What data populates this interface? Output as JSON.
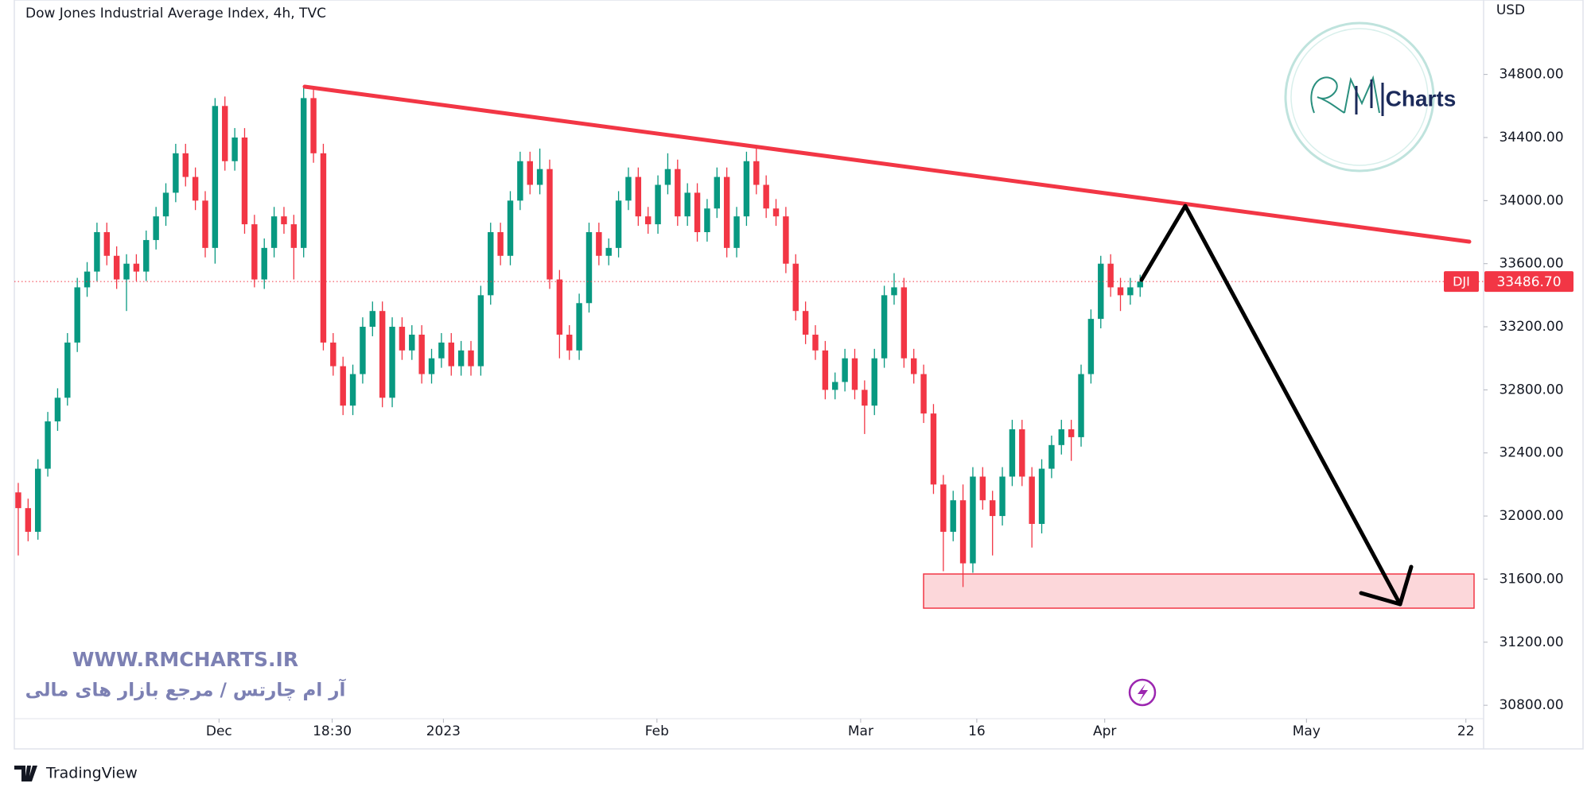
{
  "chart_data": {
    "type": "candlestick",
    "title": "Dow Jones Industrial Average Index, 4h, TVC",
    "currency": "USD",
    "symbol": "DJI",
    "last_price": {
      "value": 33486.7,
      "label": "33486.70"
    },
    "up_color": "#089981",
    "down_color": "#f23645",
    "open": [
      32150,
      32050,
      31900,
      32300,
      32600,
      32750,
      33100,
      33450,
      33550,
      33800,
      33650,
      33500,
      33600,
      33550,
      33750,
      33900,
      34050,
      34300,
      34150,
      34000,
      33700,
      34600,
      34250,
      34400,
      33850,
      33500,
      33700,
      33900,
      33850,
      33700,
      34650,
      34300,
      33100,
      32950,
      32700,
      32900,
      33200,
      33300,
      32750,
      33200,
      33050,
      33150,
      32900,
      33000,
      33100,
      32950,
      33050,
      32950,
      33400,
      33800,
      33650,
      34000,
      34250,
      34100,
      34200,
      33500,
      33150,
      33050,
      33350,
      33800,
      33650,
      33700,
      34000,
      34150,
      33900,
      33850,
      34100,
      34200,
      33900,
      34050,
      33800,
      33950,
      34150,
      33700,
      33900,
      34250,
      34100,
      33950,
      33900,
      33600,
      33300,
      33150,
      33050,
      32800,
      32850,
      33000,
      32800,
      32700,
      33000,
      33400,
      33450,
      33000,
      32900,
      32650,
      32200,
      31900,
      32100,
      31700,
      32250,
      32100,
      32000,
      32250,
      32550,
      32250,
      31950,
      32300,
      32450,
      32550,
      32500,
      32900,
      33250,
      33600,
      33450,
      33400,
      33450
    ],
    "high": [
      32210,
      32110,
      32360,
      32660,
      32810,
      33160,
      33510,
      33610,
      33860,
      33860,
      33710,
      33660,
      33660,
      33810,
      33960,
      34110,
      34360,
      34360,
      34210,
      34060,
      34650,
      34660,
      34460,
      34460,
      33910,
      33760,
      33960,
      33960,
      33910,
      34720,
      34710,
      34360,
      33160,
      33010,
      32960,
      33260,
      33360,
      33360,
      33260,
      33260,
      33210,
      33210,
      33060,
      33160,
      33160,
      33110,
      33110,
      33460,
      33860,
      33860,
      34060,
      34310,
      34310,
      34330,
      34260,
      33560,
      33210,
      33410,
      33860,
      33860,
      33760,
      34060,
      34210,
      34210,
      33960,
      34160,
      34300,
      34260,
      34110,
      34110,
      34010,
      34210,
      34210,
      33960,
      34310,
      34340,
      34160,
      34010,
      33960,
      33660,
      33360,
      33210,
      33110,
      32910,
      33060,
      33060,
      32860,
      33060,
      33460,
      33540,
      33510,
      33060,
      32960,
      32710,
      32260,
      32160,
      32200,
      32310,
      32310,
      32160,
      32310,
      32610,
      32610,
      32310,
      32360,
      32510,
      32610,
      32610,
      32960,
      33310,
      33650,
      33660,
      33510,
      33510,
      33530
    ],
    "low": [
      31750,
      31840,
      31850,
      32250,
      32540,
      32700,
      33040,
      33390,
      33490,
      33590,
      33440,
      33300,
      33490,
      33490,
      33690,
      33840,
      33990,
      34090,
      33940,
      33640,
      33600,
      34190,
      34190,
      33790,
      33450,
      33440,
      33640,
      33790,
      33500,
      33640,
      34240,
      33050,
      32890,
      32640,
      32640,
      32840,
      33140,
      32690,
      32690,
      32990,
      32990,
      32840,
      32840,
      32940,
      32890,
      32890,
      32890,
      32890,
      33340,
      33590,
      33590,
      33940,
      34040,
      34040,
      33440,
      33000,
      32990,
      32990,
      33290,
      33590,
      33590,
      33640,
      33940,
      33840,
      33790,
      33790,
      34040,
      33840,
      33840,
      33740,
      33740,
      33890,
      33640,
      33640,
      33840,
      34040,
      33890,
      33840,
      33540,
      33240,
      33090,
      32990,
      32740,
      32740,
      32790,
      32740,
      32520,
      32640,
      32940,
      33340,
      32940,
      32840,
      32590,
      32140,
      31650,
      31840,
      31550,
      31640,
      32040,
      31750,
      31940,
      32190,
      32190,
      31800,
      31890,
      32240,
      32390,
      32350,
      32440,
      32840,
      33190,
      33390,
      33300,
      33340,
      33390
    ],
    "close": [
      32050,
      31900,
      32300,
      32600,
      32750,
      33100,
      33450,
      33550,
      33800,
      33650,
      33500,
      33600,
      33550,
      33750,
      33900,
      34050,
      34300,
      34150,
      34000,
      33700,
      34600,
      34250,
      34400,
      33850,
      33500,
      33700,
      33900,
      33850,
      33700,
      34650,
      34300,
      33100,
      32950,
      32700,
      32900,
      33200,
      33300,
      32750,
      33200,
      33050,
      33150,
      32900,
      33000,
      33100,
      32950,
      33050,
      32950,
      33400,
      33800,
      33650,
      34000,
      34250,
      34100,
      34200,
      33500,
      33150,
      33050,
      33350,
      33800,
      33650,
      33700,
      34000,
      34150,
      33900,
      33850,
      34100,
      34200,
      33900,
      34050,
      33800,
      33950,
      34150,
      33700,
      33900,
      34250,
      34100,
      33950,
      33900,
      33600,
      33300,
      33150,
      33050,
      32800,
      32850,
      33000,
      32800,
      32700,
      33000,
      33400,
      33450,
      33000,
      32900,
      32650,
      32200,
      31900,
      32100,
      31700,
      32250,
      32100,
      32000,
      32250,
      32550,
      32250,
      31950,
      32300,
      32450,
      32550,
      32500,
      32900,
      33250,
      33600,
      33450,
      33400,
      33450,
      33486.7
    ],
    "xlim": [
      -0.4,
      148.9
    ],
    "xticks": [
      {
        "value": 20.4,
        "label": "Dec"
      },
      {
        "value": 31.9,
        "label": "18:30"
      },
      {
        "value": 43.2,
        "label": "2023"
      },
      {
        "value": 64.9,
        "label": "Feb"
      },
      {
        "value": 85.6,
        "label": "Mar"
      },
      {
        "value": 97.4,
        "label": "16"
      },
      {
        "value": 110.4,
        "label": "Apr"
      },
      {
        "value": 130.9,
        "label": "May"
      },
      {
        "value": 147.1,
        "label": "22"
      }
    ],
    "ylim": [
      30715,
      35272
    ],
    "yticks": [
      {
        "value": 30800,
        "label": "30800.00"
      },
      {
        "value": 31200,
        "label": "31200.00"
      },
      {
        "value": 31600,
        "label": "31600.00"
      },
      {
        "value": 32000,
        "label": "32000.00"
      },
      {
        "value": 32400,
        "label": "32400.00"
      },
      {
        "value": 32800,
        "label": "32800.00"
      },
      {
        "value": 33200,
        "label": "33200.00"
      },
      {
        "value": 33600,
        "label": "33600.00"
      },
      {
        "value": 34000,
        "label": "34000.00"
      },
      {
        "value": 34400,
        "label": "34400.00"
      },
      {
        "value": 34800,
        "label": "34800.00"
      }
    ],
    "grid": false
  },
  "watermark": {
    "url": "WWW.RMCHARTS.IR",
    "tagline": "آر ام چارتس / مرجع بازار های مالی"
  },
  "logo": {
    "text": "Charts"
  },
  "footer": {
    "brand": "TradingView"
  }
}
